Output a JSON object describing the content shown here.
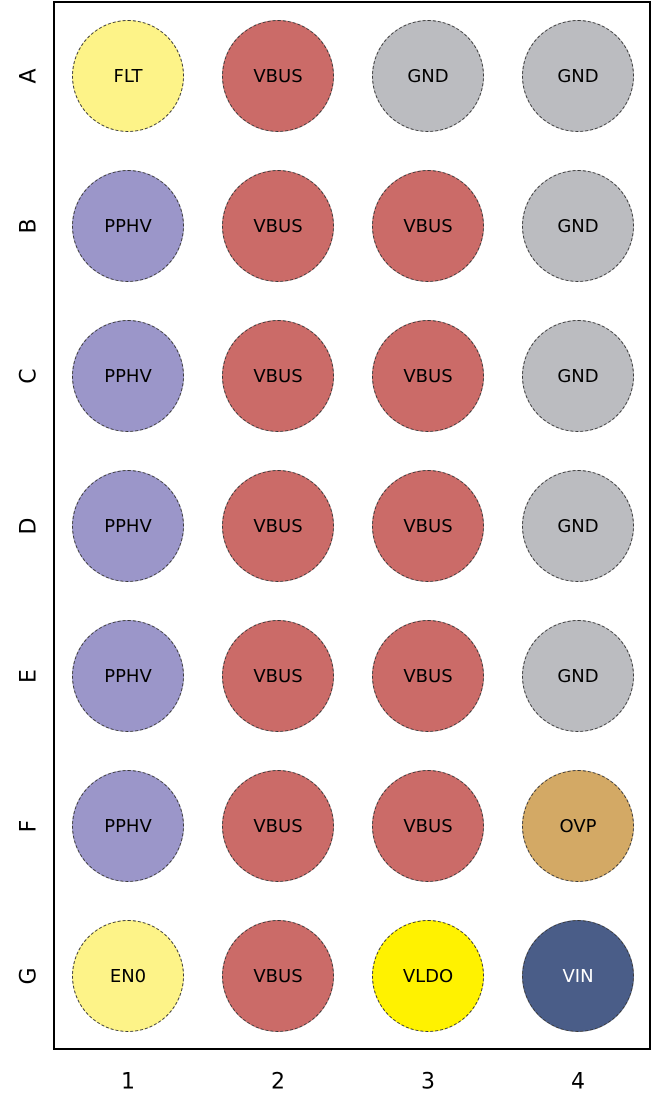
{
  "rows": [
    "A",
    "B",
    "C",
    "D",
    "E",
    "F",
    "G"
  ],
  "columns": [
    "1",
    "2",
    "3",
    "4"
  ],
  "colors": {
    "FLT": "#fdf388",
    "EN0": "#fdf388",
    "VBUS": "#cb6b68",
    "GND": "#bbbcc0",
    "PPHV": "#9b96c9",
    "OVP": "#d3a965",
    "VLDO": "#fff200",
    "VIN": "#4a5d88"
  },
  "pins": [
    [
      "FLT",
      "VBUS",
      "GND",
      "GND"
    ],
    [
      "PPHV",
      "VBUS",
      "VBUS",
      "GND"
    ],
    [
      "PPHV",
      "VBUS",
      "VBUS",
      "GND"
    ],
    [
      "PPHV",
      "VBUS",
      "VBUS",
      "GND"
    ],
    [
      "PPHV",
      "VBUS",
      "VBUS",
      "GND"
    ],
    [
      "PPHV",
      "VBUS",
      "VBUS",
      "OVP"
    ],
    [
      "EN0",
      "VBUS",
      "VLDO",
      "VIN"
    ]
  ]
}
